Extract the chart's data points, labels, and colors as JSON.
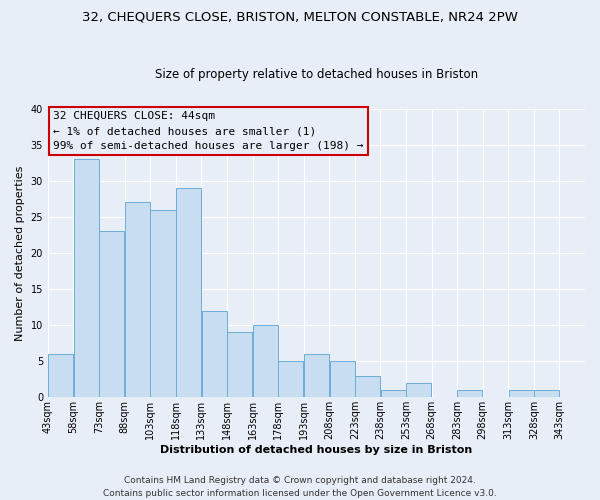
{
  "title": "32, CHEQUERS CLOSE, BRISTON, MELTON CONSTABLE, NR24 2PW",
  "subtitle": "Size of property relative to detached houses in Briston",
  "xlabel": "Distribution of detached houses by size in Briston",
  "ylabel": "Number of detached properties",
  "bar_values": [
    6,
    33,
    23,
    27,
    26,
    29,
    12,
    9,
    10,
    5,
    6,
    5,
    3,
    1,
    2,
    0,
    1,
    0,
    1,
    1,
    0
  ],
  "bar_labels": [
    "43sqm",
    "58sqm",
    "73sqm",
    "88sqm",
    "103sqm",
    "118sqm",
    "133sqm",
    "148sqm",
    "163sqm",
    "178sqm",
    "193sqm",
    "208sqm",
    "223sqm",
    "238sqm",
    "253sqm",
    "268sqm",
    "283sqm",
    "298sqm",
    "313sqm",
    "328sqm",
    "343sqm"
  ],
  "bin_edges": [
    43,
    58,
    73,
    88,
    103,
    118,
    133,
    148,
    163,
    178,
    193,
    208,
    223,
    238,
    253,
    268,
    283,
    298,
    313,
    328,
    343
  ],
  "bar_color_fill": "#c9ddf0",
  "bar_color_edge": "#6aaed6",
  "annotation_box_color": "#cc0000",
  "annotation_text_line1": "32 CHEQUERS CLOSE: 44sqm",
  "annotation_text_line2": "← 1% of detached houses are smaller (1)",
  "annotation_text_line3": "99% of semi-detached houses are larger (198) →",
  "ylim": [
    0,
    40
  ],
  "yticks": [
    0,
    5,
    10,
    15,
    20,
    25,
    30,
    35,
    40
  ],
  "footer_line1": "Contains HM Land Registry data © Crown copyright and database right 2024.",
  "footer_line2": "Contains public sector information licensed under the Open Government Licence v3.0.",
  "figure_bg": "#e8eef7",
  "axes_bg": "#e8eef7",
  "grid_color": "#ffffff",
  "title_fontsize": 9.5,
  "subtitle_fontsize": 8.5,
  "axis_label_fontsize": 8,
  "tick_fontsize": 7,
  "annotation_fontsize": 8,
  "footer_fontsize": 6.5
}
